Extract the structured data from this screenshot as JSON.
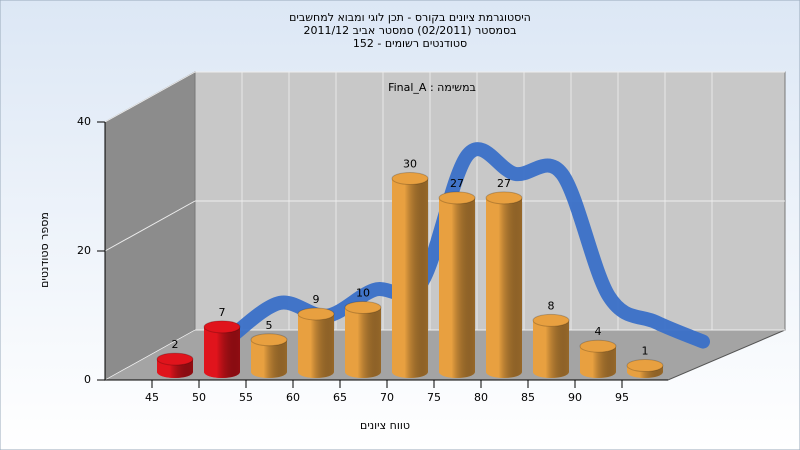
{
  "chart_data": {
    "type": "bar3d",
    "title": "היסטוגרמת ציונים בקורס - תכן לוגי ומבוא למחשבים",
    "subtitle_lines": [
      "בסמסטר (02/2011) סמסטר אביב 2011/12",
      "סטודנטים רשומים - 152"
    ],
    "annotation": "Final_A : במשימה",
    "x_label": "טווח ציונים",
    "y_label": "מספר סטודנטים",
    "categories": [
      "45",
      "50",
      "55",
      "60",
      "65",
      "70",
      "75",
      "80",
      "85",
      "90",
      "95"
    ],
    "values": [
      2,
      7,
      5,
      9,
      10,
      30,
      27,
      27,
      8,
      4,
      1
    ],
    "colors": [
      "#e0141c",
      "#e0141c",
      "#e8a040",
      "#e8a040",
      "#e8a040",
      "#e8a040",
      "#e8a040",
      "#e8a040",
      "#e8a040",
      "#e8a040",
      "#e8a040"
    ],
    "line_color": "#3a70c8",
    "ylim": [
      0,
      40
    ],
    "yticks": [
      0,
      20,
      40
    ],
    "grid": true
  }
}
